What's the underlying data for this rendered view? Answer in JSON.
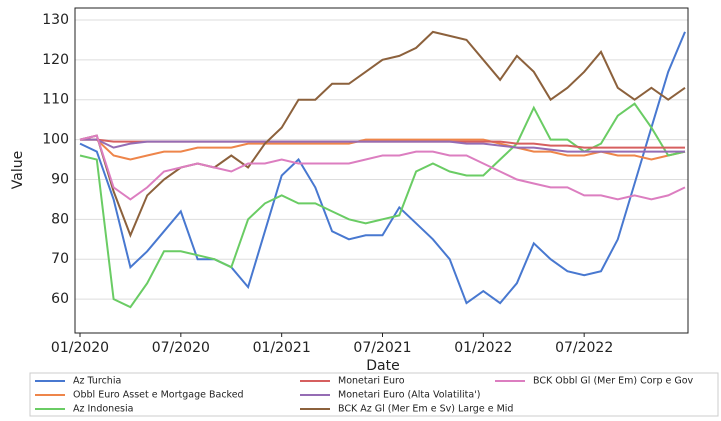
{
  "chart_data": {
    "type": "line",
    "x_label": "Date",
    "y_label": "Value",
    "x": [
      "2020-01",
      "2020-02",
      "2020-03",
      "2020-04",
      "2020-05",
      "2020-06",
      "2020-07",
      "2020-08",
      "2020-09",
      "2020-10",
      "2020-11",
      "2020-12",
      "2021-01",
      "2021-02",
      "2021-03",
      "2021-04",
      "2021-05",
      "2021-06",
      "2021-07",
      "2021-08",
      "2021-09",
      "2021-10",
      "2021-11",
      "2021-12",
      "2022-01",
      "2022-02",
      "2022-03",
      "2022-04",
      "2022-05",
      "2022-06",
      "2022-07",
      "2022-08",
      "2022-09",
      "2022-10",
      "2022-11",
      "2022-12",
      "2023-01"
    ],
    "xlim": [
      "2020-01",
      "2023-01"
    ],
    "xticks": [
      {
        "value": "2020-01",
        "label": "01/2020"
      },
      {
        "value": "2020-07",
        "label": "07/2020"
      },
      {
        "value": "2021-01",
        "label": "01/2021"
      },
      {
        "value": "2021-07",
        "label": "07/2021"
      },
      {
        "value": "2022-01",
        "label": "01/2022"
      },
      {
        "value": "2022-07",
        "label": "07/2022"
      }
    ],
    "ylim": [
      51.5,
      133
    ],
    "yticks": [
      60,
      70,
      80,
      90,
      100,
      110,
      120,
      130
    ],
    "grid": "y",
    "legend": "bottom",
    "series": [
      {
        "name": "Az Turchia",
        "color": "#4878d0",
        "values": [
          99,
          97,
          85,
          68,
          72,
          77,
          82,
          70,
          70,
          68,
          63,
          77,
          91,
          95,
          88,
          77,
          75,
          76,
          76,
          83,
          79,
          75,
          70,
          59,
          62,
          59,
          64,
          74,
          70,
          67,
          66,
          67,
          75,
          89,
          103,
          117,
          127
        ]
      },
      {
        "name": "Obbl Euro Asset e Mortgage Backed",
        "color": "#ee854a",
        "values": [
          100,
          100,
          96,
          95,
          96,
          97,
          97,
          98,
          98,
          98,
          99,
          99,
          99,
          99,
          99,
          99,
          99,
          100,
          100,
          100,
          100,
          100,
          100,
          100,
          100,
          99,
          98,
          97,
          97,
          96,
          96,
          97,
          96,
          96,
          95,
          96,
          97
        ]
      },
      {
        "name": "Az Indonesia",
        "color": "#6acc64",
        "values": [
          96,
          95,
          60,
          58,
          64,
          72,
          72,
          71,
          70,
          68,
          80,
          84,
          86,
          84,
          84,
          82,
          80,
          79,
          80,
          81,
          92,
          94,
          92,
          91,
          91,
          95,
          99,
          108,
          100,
          100,
          97,
          99,
          106,
          109,
          103,
          96,
          97
        ]
      },
      {
        "name": "Monetari Euro",
        "color": "#d65f5f",
        "values": [
          100,
          100,
          99.5,
          99.5,
          99.5,
          99.5,
          99.5,
          99.5,
          99.5,
          99.5,
          99.5,
          99.5,
          99.5,
          99.5,
          99.5,
          99.5,
          99.5,
          99.5,
          99.5,
          99.5,
          99.5,
          99.5,
          99.5,
          99.5,
          99.5,
          99.5,
          99,
          99,
          98.5,
          98.5,
          98,
          98,
          98,
          98,
          98,
          98,
          98
        ]
      },
      {
        "name": "Monetari Euro (Alta Volatilita')",
        "color": "#956cb4",
        "values": [
          100,
          100,
          98,
          99,
          99.5,
          99.5,
          99.5,
          99.5,
          99.5,
          99.5,
          99.5,
          99.5,
          99.5,
          99.5,
          99.5,
          99.5,
          99.5,
          99.5,
          99.5,
          99.5,
          99.5,
          99.5,
          99.5,
          99,
          99,
          98.5,
          98,
          98,
          97.5,
          97,
          97,
          97,
          97,
          97,
          97,
          97,
          97
        ]
      },
      {
        "name": "BCK Az Gl (Mer Em e Sv) Large e Mid",
        "color": "#8c613c",
        "values": [
          100,
          101,
          87,
          76,
          86,
          90,
          93,
          94,
          93,
          96,
          93,
          99,
          103,
          110,
          110,
          114,
          114,
          117,
          120,
          121,
          123,
          127,
          126,
          125,
          120,
          115,
          121,
          117,
          110,
          113,
          117,
          122,
          113,
          110,
          113,
          110,
          113
        ]
      },
      {
        "name": "BCK Obbl Gl (Mer Em) Corp e Gov",
        "color": "#dc7ec0",
        "values": [
          100,
          101,
          88,
          85,
          88,
          92,
          93,
          94,
          93,
          92,
          94,
          94,
          95,
          94,
          94,
          94,
          94,
          95,
          96,
          96,
          97,
          97,
          96,
          96,
          94,
          92,
          90,
          89,
          88,
          88,
          86,
          86,
          85,
          86,
          85,
          86,
          88
        ]
      }
    ]
  }
}
